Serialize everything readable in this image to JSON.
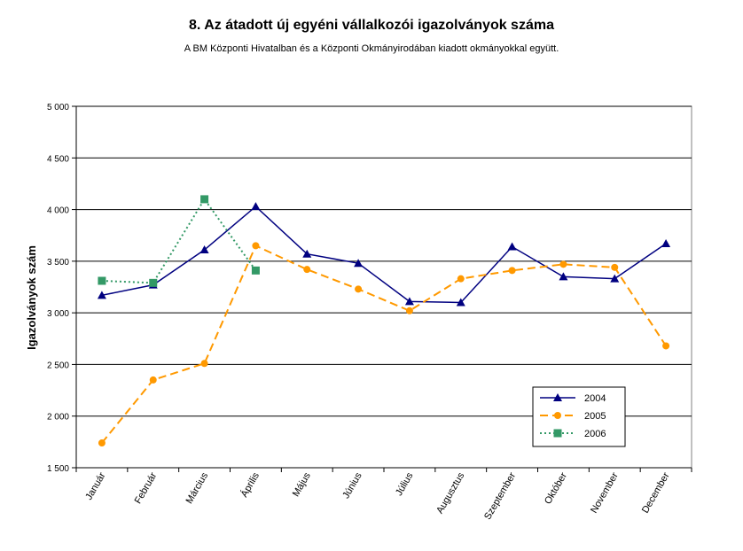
{
  "chart_data": {
    "type": "line",
    "title": "8. Az átadott új egyéni vállalkozói  igazolványok száma",
    "subtitle": "A BM Központi Hivatalban és a Központi Okmányirodában kiadott okmányokkal együtt.",
    "ylabel": "Igazolványok szám",
    "xlabel": "",
    "ylim": [
      1500,
      5000
    ],
    "ytick_step": 500,
    "ytick_labels": [
      "1 500",
      "2 000",
      "2 500",
      "3 000",
      "3 500",
      "4 000",
      "4 500",
      "5 000"
    ],
    "grid": "horizontal",
    "legend_position": "bottom-right",
    "categories": [
      "Január",
      "Február",
      "Március",
      "Április",
      "Május",
      "Június",
      "Július",
      "Augusztus",
      "Szeptember",
      "Október",
      "November",
      "December"
    ],
    "series": [
      {
        "name": "2004",
        "color": "#000080",
        "marker": "triangle",
        "dash": "solid",
        "values": [
          3170,
          3270,
          3610,
          4030,
          3570,
          3480,
          3110,
          3100,
          3640,
          3350,
          3330,
          3670
        ]
      },
      {
        "name": "2005",
        "color": "#FF9900",
        "marker": "circle",
        "dash": "dashed",
        "values": [
          1740,
          2350,
          2510,
          3650,
          3420,
          3230,
          3020,
          3330,
          3410,
          3470,
          3440,
          2680
        ]
      },
      {
        "name": "2006",
        "color": "#339966",
        "marker": "square",
        "dash": "dotted",
        "values": [
          3310,
          3290,
          4100,
          3410,
          null,
          null,
          null,
          null,
          null,
          null,
          null,
          null
        ]
      }
    ]
  }
}
